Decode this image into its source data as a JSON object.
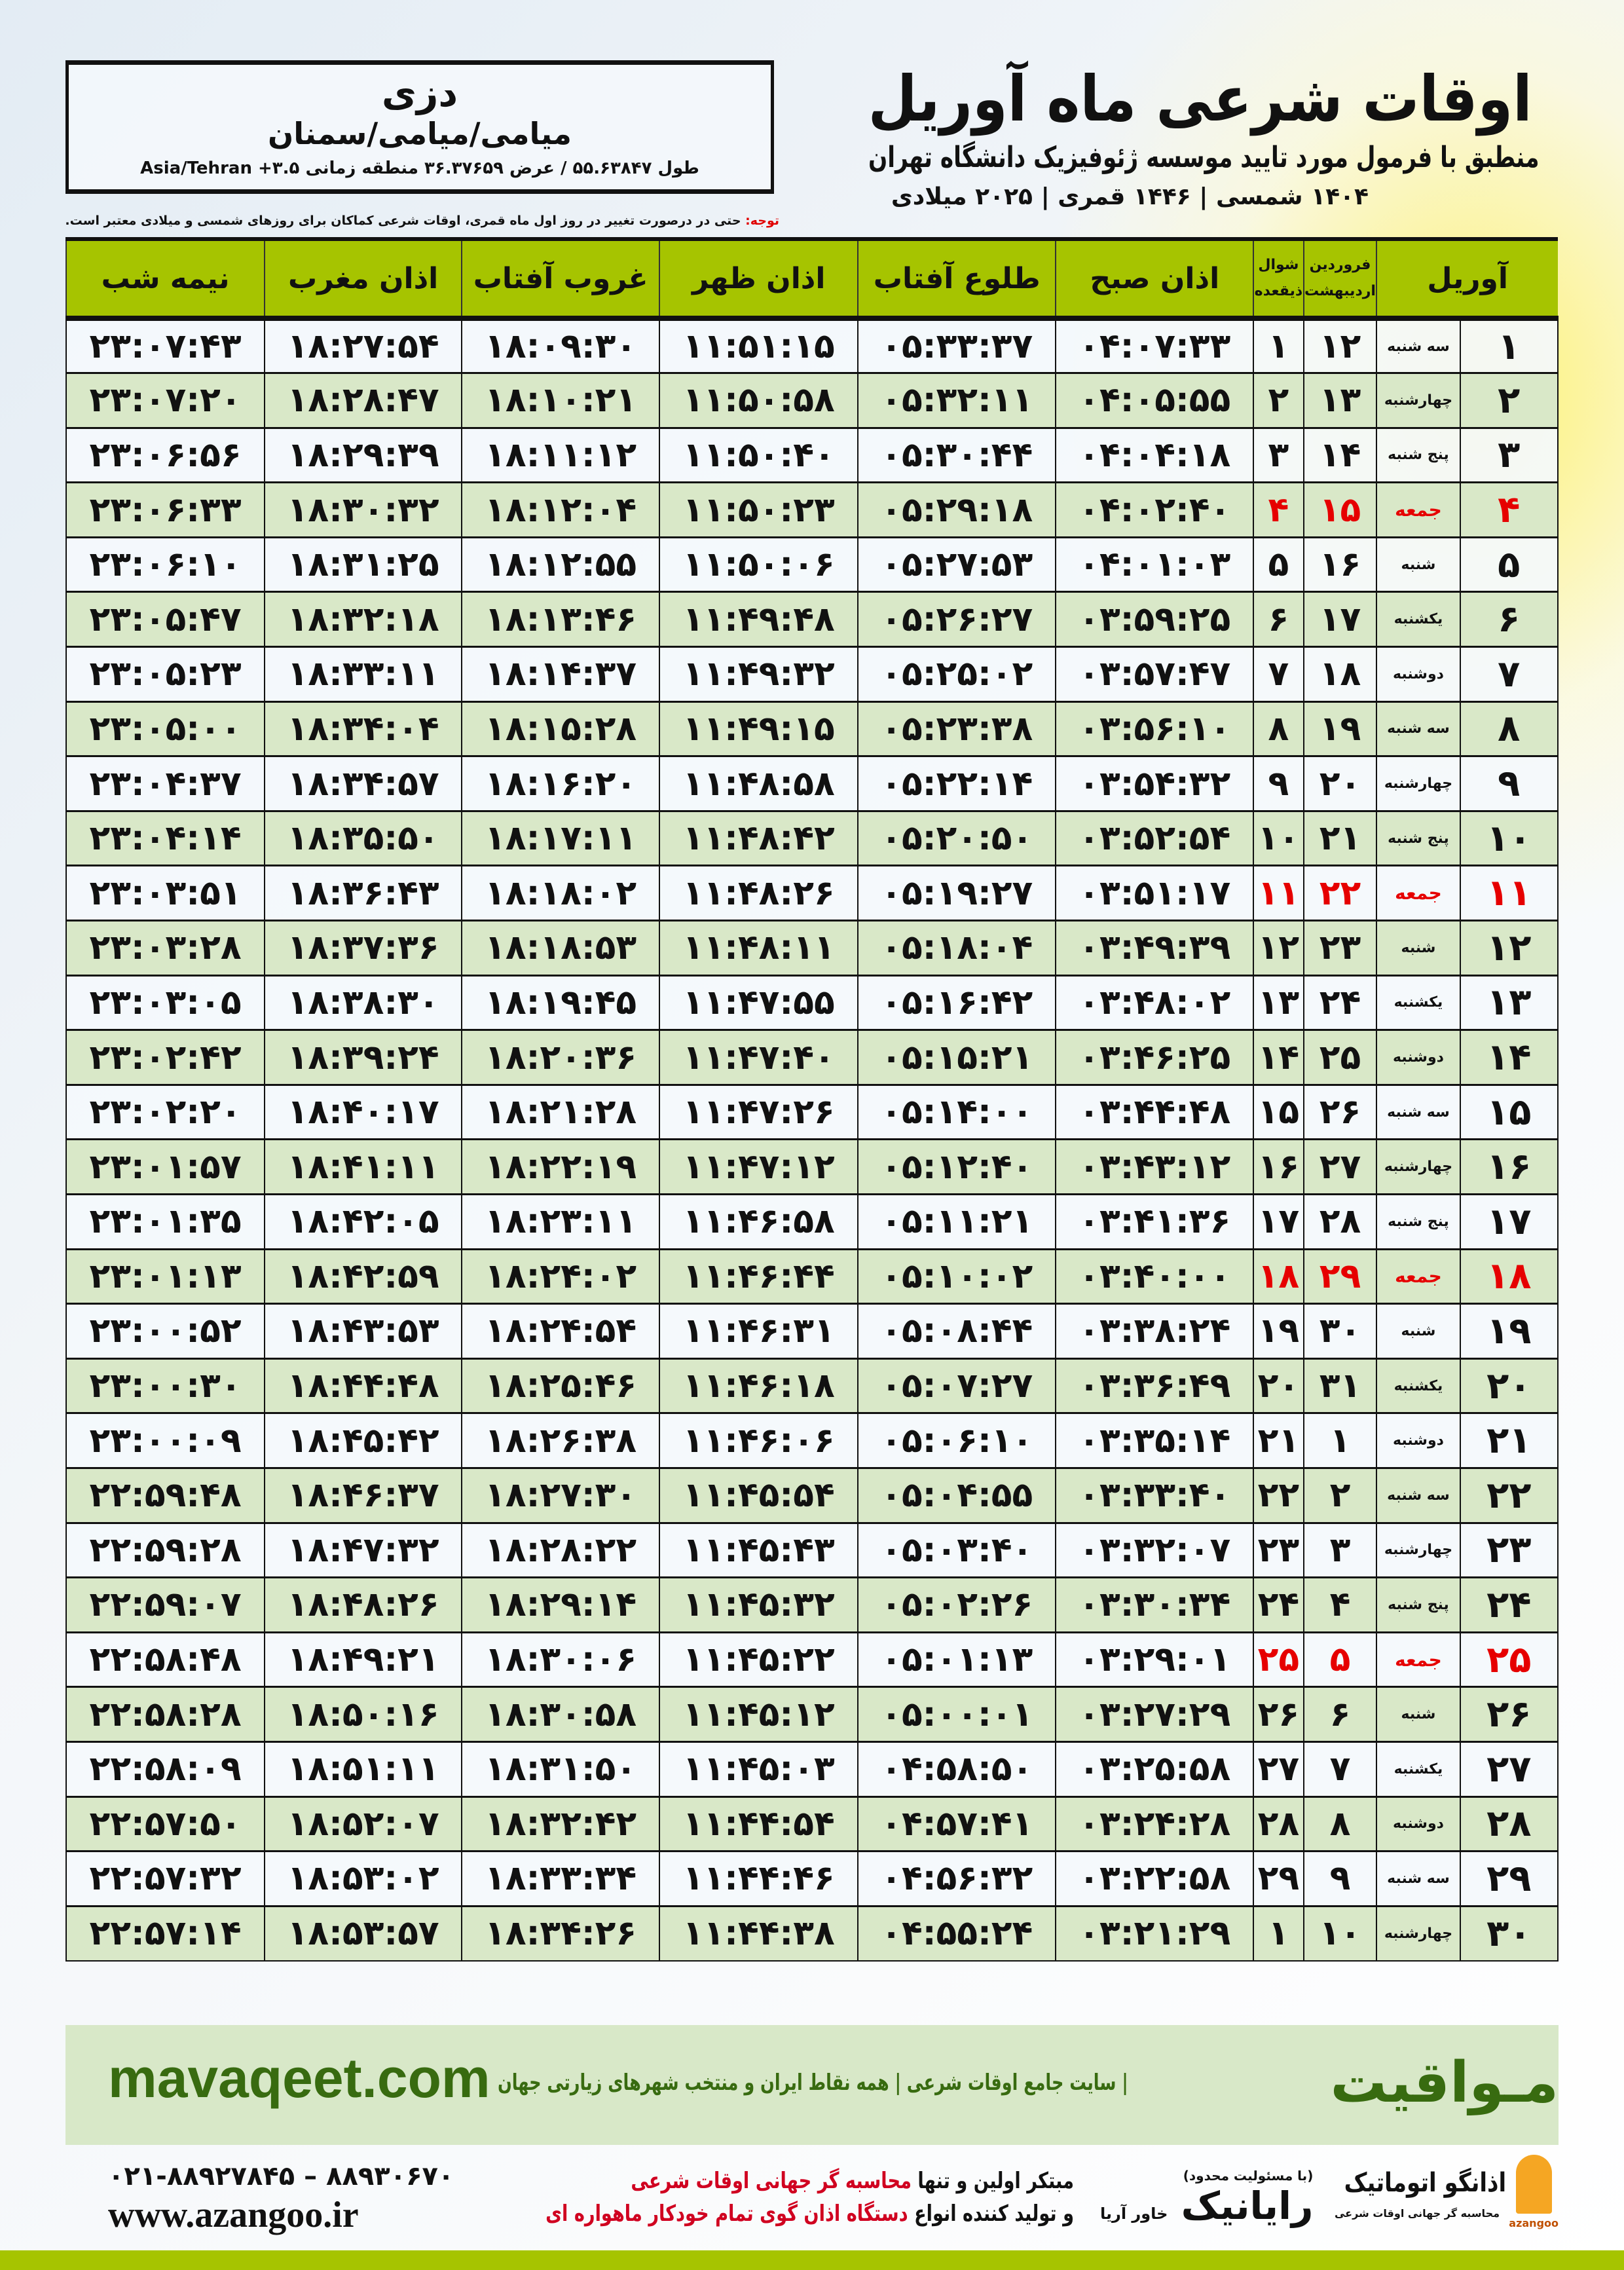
{
  "header": {
    "title": "اوقات شرعی ماه آوریل",
    "subtitle": "منطبق با فرمول مورد تایید موسسه ژئوفیزیک دانشگاه تهران",
    "dateline": "۱۴۰۴ شمسی | ۱۴۴۶ قمری | ۲۰۲۵ میلادی"
  },
  "location": {
    "city": "دزی",
    "region": "میامی/میامی/سمنان",
    "coords": "طول ۵۵.۶۳۸۴۷ / عرض ۳۶.۳۷۶۵۹ منطقه زمانی ۳.۵+ Asia/Tehran"
  },
  "note": {
    "label": "توجه:",
    "text": " حتی در درصورت تغییر در روز اول ماه قمری، اوقات شرعی کماکان برای روزهای شمسی و میلادی معتبر است."
  },
  "columns": {
    "month": "آوریل",
    "shamsi_top": "فروردین",
    "shamsi_bottom": "اردیبهشت",
    "qamari_top": "شوال",
    "qamari_bottom": "ذیقعده",
    "fajr": "اذان صبح",
    "sunrise": "طلوع آفتاب",
    "dhuhr": "اذان ظهر",
    "sunset": "غروب آفتاب",
    "maghrib": "اذان مغرب",
    "midnight": "نیمه شب"
  },
  "rows": [
    {
      "d": "۱",
      "w": "سه شنبه",
      "s": "۱۲",
      "q": "۱",
      "f": "۰۴:۰۷:۳۳",
      "r": "۰۵:۳۳:۳۷",
      "z": "۱۱:۵۱:۱۵",
      "g": "۱۸:۰۹:۳۰",
      "m": "۱۸:۲۷:۵۴",
      "n": "۲۳:۰۷:۴۳"
    },
    {
      "d": "۲",
      "w": "چهارشنبه",
      "s": "۱۳",
      "q": "۲",
      "f": "۰۴:۰۵:۵۵",
      "r": "۰۵:۳۲:۱۱",
      "z": "۱۱:۵۰:۵۸",
      "g": "۱۸:۱۰:۲۱",
      "m": "۱۸:۲۸:۴۷",
      "n": "۲۳:۰۷:۲۰"
    },
    {
      "d": "۳",
      "w": "پنج شنبه",
      "s": "۱۴",
      "q": "۳",
      "f": "۰۴:۰۴:۱۸",
      "r": "۰۵:۳۰:۴۴",
      "z": "۱۱:۵۰:۴۰",
      "g": "۱۸:۱۱:۱۲",
      "m": "۱۸:۲۹:۳۹",
      "n": "۲۳:۰۶:۵۶"
    },
    {
      "d": "۴",
      "w": "جمعه",
      "s": "۱۵",
      "q": "۴",
      "f": "۰۴:۰۲:۴۰",
      "r": "۰۵:۲۹:۱۸",
      "z": "۱۱:۵۰:۲۳",
      "g": "۱۸:۱۲:۰۴",
      "m": "۱۸:۳۰:۳۲",
      "n": "۲۳:۰۶:۳۳",
      "fri": true
    },
    {
      "d": "۵",
      "w": "شنبه",
      "s": "۱۶",
      "q": "۵",
      "f": "۰۴:۰۱:۰۳",
      "r": "۰۵:۲۷:۵۳",
      "z": "۱۱:۵۰:۰۶",
      "g": "۱۸:۱۲:۵۵",
      "m": "۱۸:۳۱:۲۵",
      "n": "۲۳:۰۶:۱۰"
    },
    {
      "d": "۶",
      "w": "یکشنبه",
      "s": "۱۷",
      "q": "۶",
      "f": "۰۳:۵۹:۲۵",
      "r": "۰۵:۲۶:۲۷",
      "z": "۱۱:۴۹:۴۸",
      "g": "۱۸:۱۳:۴۶",
      "m": "۱۸:۳۲:۱۸",
      "n": "۲۳:۰۵:۴۷"
    },
    {
      "d": "۷",
      "w": "دوشنبه",
      "s": "۱۸",
      "q": "۷",
      "f": "۰۳:۵۷:۴۷",
      "r": "۰۵:۲۵:۰۲",
      "z": "۱۱:۴۹:۳۲",
      "g": "۱۸:۱۴:۳۷",
      "m": "۱۸:۳۳:۱۱",
      "n": "۲۳:۰۵:۲۳"
    },
    {
      "d": "۸",
      "w": "سه شنبه",
      "s": "۱۹",
      "q": "۸",
      "f": "۰۳:۵۶:۱۰",
      "r": "۰۵:۲۳:۳۸",
      "z": "۱۱:۴۹:۱۵",
      "g": "۱۸:۱۵:۲۸",
      "m": "۱۸:۳۴:۰۴",
      "n": "۲۳:۰۵:۰۰"
    },
    {
      "d": "۹",
      "w": "چهارشنبه",
      "s": "۲۰",
      "q": "۹",
      "f": "۰۳:۵۴:۳۲",
      "r": "۰۵:۲۲:۱۴",
      "z": "۱۱:۴۸:۵۸",
      "g": "۱۸:۱۶:۲۰",
      "m": "۱۸:۳۴:۵۷",
      "n": "۲۳:۰۴:۳۷"
    },
    {
      "d": "۱۰",
      "w": "پنج شنبه",
      "s": "۲۱",
      "q": "۱۰",
      "f": "۰۳:۵۲:۵۴",
      "r": "۰۵:۲۰:۵۰",
      "z": "۱۱:۴۸:۴۲",
      "g": "۱۸:۱۷:۱۱",
      "m": "۱۸:۳۵:۵۰",
      "n": "۲۳:۰۴:۱۴"
    },
    {
      "d": "۱۱",
      "w": "جمعه",
      "s": "۲۲",
      "q": "۱۱",
      "f": "۰۳:۵۱:۱۷",
      "r": "۰۵:۱۹:۲۷",
      "z": "۱۱:۴۸:۲۶",
      "g": "۱۸:۱۸:۰۲",
      "m": "۱۸:۳۶:۴۳",
      "n": "۲۳:۰۳:۵۱",
      "fri": true
    },
    {
      "d": "۱۲",
      "w": "شنبه",
      "s": "۲۳",
      "q": "۱۲",
      "f": "۰۳:۴۹:۳۹",
      "r": "۰۵:۱۸:۰۴",
      "z": "۱۱:۴۸:۱۱",
      "g": "۱۸:۱۸:۵۳",
      "m": "۱۸:۳۷:۳۶",
      "n": "۲۳:۰۳:۲۸"
    },
    {
      "d": "۱۳",
      "w": "یکشنبه",
      "s": "۲۴",
      "q": "۱۳",
      "f": "۰۳:۴۸:۰۲",
      "r": "۰۵:۱۶:۴۲",
      "z": "۱۱:۴۷:۵۵",
      "g": "۱۸:۱۹:۴۵",
      "m": "۱۸:۳۸:۳۰",
      "n": "۲۳:۰۳:۰۵"
    },
    {
      "d": "۱۴",
      "w": "دوشنبه",
      "s": "۲۵",
      "q": "۱۴",
      "f": "۰۳:۴۶:۲۵",
      "r": "۰۵:۱۵:۲۱",
      "z": "۱۱:۴۷:۴۰",
      "g": "۱۸:۲۰:۳۶",
      "m": "۱۸:۳۹:۲۴",
      "n": "۲۳:۰۲:۴۲"
    },
    {
      "d": "۱۵",
      "w": "سه شنبه",
      "s": "۲۶",
      "q": "۱۵",
      "f": "۰۳:۴۴:۴۸",
      "r": "۰۵:۱۴:۰۰",
      "z": "۱۱:۴۷:۲۶",
      "g": "۱۸:۲۱:۲۸",
      "m": "۱۸:۴۰:۱۷",
      "n": "۲۳:۰۲:۲۰"
    },
    {
      "d": "۱۶",
      "w": "چهارشنبه",
      "s": "۲۷",
      "q": "۱۶",
      "f": "۰۳:۴۳:۱۲",
      "r": "۰۵:۱۲:۴۰",
      "z": "۱۱:۴۷:۱۲",
      "g": "۱۸:۲۲:۱۹",
      "m": "۱۸:۴۱:۱۱",
      "n": "۲۳:۰۱:۵۷"
    },
    {
      "d": "۱۷",
      "w": "پنج شنبه",
      "s": "۲۸",
      "q": "۱۷",
      "f": "۰۳:۴۱:۳۶",
      "r": "۰۵:۱۱:۲۱",
      "z": "۱۱:۴۶:۵۸",
      "g": "۱۸:۲۳:۱۱",
      "m": "۱۸:۴۲:۰۵",
      "n": "۲۳:۰۱:۳۵"
    },
    {
      "d": "۱۸",
      "w": "جمعه",
      "s": "۲۹",
      "q": "۱۸",
      "f": "۰۳:۴۰:۰۰",
      "r": "۰۵:۱۰:۰۲",
      "z": "۱۱:۴۶:۴۴",
      "g": "۱۸:۲۴:۰۲",
      "m": "۱۸:۴۲:۵۹",
      "n": "۲۳:۰۱:۱۳",
      "fri": true
    },
    {
      "d": "۱۹",
      "w": "شنبه",
      "s": "۳۰",
      "q": "۱۹",
      "f": "۰۳:۳۸:۲۴",
      "r": "۰۵:۰۸:۴۴",
      "z": "۱۱:۴۶:۳۱",
      "g": "۱۸:۲۴:۵۴",
      "m": "۱۸:۴۳:۵۳",
      "n": "۲۳:۰۰:۵۲"
    },
    {
      "d": "۲۰",
      "w": "یکشنبه",
      "s": "۳۱",
      "q": "۲۰",
      "f": "۰۳:۳۶:۴۹",
      "r": "۰۵:۰۷:۲۷",
      "z": "۱۱:۴۶:۱۸",
      "g": "۱۸:۲۵:۴۶",
      "m": "۱۸:۴۴:۴۸",
      "n": "۲۳:۰۰:۳۰"
    },
    {
      "d": "۲۱",
      "w": "دوشنبه",
      "s": "۱",
      "q": "۲۱",
      "f": "۰۳:۳۵:۱۴",
      "r": "۰۵:۰۶:۱۰",
      "z": "۱۱:۴۶:۰۶",
      "g": "۱۸:۲۶:۳۸",
      "m": "۱۸:۴۵:۴۲",
      "n": "۲۳:۰۰:۰۹"
    },
    {
      "d": "۲۲",
      "w": "سه شنبه",
      "s": "۲",
      "q": "۲۲",
      "f": "۰۳:۳۳:۴۰",
      "r": "۰۵:۰۴:۵۵",
      "z": "۱۱:۴۵:۵۴",
      "g": "۱۸:۲۷:۳۰",
      "m": "۱۸:۴۶:۳۷",
      "n": "۲۲:۵۹:۴۸"
    },
    {
      "d": "۲۳",
      "w": "چهارشنبه",
      "s": "۳",
      "q": "۲۳",
      "f": "۰۳:۳۲:۰۷",
      "r": "۰۵:۰۳:۴۰",
      "z": "۱۱:۴۵:۴۳",
      "g": "۱۸:۲۸:۲۲",
      "m": "۱۸:۴۷:۳۲",
      "n": "۲۲:۵۹:۲۸"
    },
    {
      "d": "۲۴",
      "w": "پنج شنبه",
      "s": "۴",
      "q": "۲۴",
      "f": "۰۳:۳۰:۳۴",
      "r": "۰۵:۰۲:۲۶",
      "z": "۱۱:۴۵:۳۲",
      "g": "۱۸:۲۹:۱۴",
      "m": "۱۸:۴۸:۲۶",
      "n": "۲۲:۵۹:۰۷"
    },
    {
      "d": "۲۵",
      "w": "جمعه",
      "s": "۵",
      "q": "۲۵",
      "f": "۰۳:۲۹:۰۱",
      "r": "۰۵:۰۱:۱۳",
      "z": "۱۱:۴۵:۲۲",
      "g": "۱۸:۳۰:۰۶",
      "m": "۱۸:۴۹:۲۱",
      "n": "۲۲:۵۸:۴۸",
      "fri": true
    },
    {
      "d": "۲۶",
      "w": "شنبه",
      "s": "۶",
      "q": "۲۶",
      "f": "۰۳:۲۷:۲۹",
      "r": "۰۵:۰۰:۰۱",
      "z": "۱۱:۴۵:۱۲",
      "g": "۱۸:۳۰:۵۸",
      "m": "۱۸:۵۰:۱۶",
      "n": "۲۲:۵۸:۲۸"
    },
    {
      "d": "۲۷",
      "w": "یکشنبه",
      "s": "۷",
      "q": "۲۷",
      "f": "۰۳:۲۵:۵۸",
      "r": "۰۴:۵۸:۵۰",
      "z": "۱۱:۴۵:۰۳",
      "g": "۱۸:۳۱:۵۰",
      "m": "۱۸:۵۱:۱۱",
      "n": "۲۲:۵۸:۰۹"
    },
    {
      "d": "۲۸",
      "w": "دوشنبه",
      "s": "۸",
      "q": "۲۸",
      "f": "۰۳:۲۴:۲۸",
      "r": "۰۴:۵۷:۴۱",
      "z": "۱۱:۴۴:۵۴",
      "g": "۱۸:۳۲:۴۲",
      "m": "۱۸:۵۲:۰۷",
      "n": "۲۲:۵۷:۵۰"
    },
    {
      "d": "۲۹",
      "w": "سه شنبه",
      "s": "۹",
      "q": "۲۹",
      "f": "۰۳:۲۲:۵۸",
      "r": "۰۴:۵۶:۳۲",
      "z": "۱۱:۴۴:۴۶",
      "g": "۱۸:۳۳:۳۴",
      "m": "۱۸:۵۳:۰۲",
      "n": "۲۲:۵۷:۳۲"
    },
    {
      "d": "۳۰",
      "w": "چهارشنبه",
      "s": "۱۰",
      "q": "۱",
      "f": "۰۳:۲۱:۲۹",
      "r": "۰۴:۵۵:۲۴",
      "z": "۱۱:۴۴:۳۸",
      "g": "۱۸:۳۴:۲۶",
      "m": "۱۸:۵۳:۵۷",
      "n": "۲۲:۵۷:۱۴"
    }
  ],
  "footer": {
    "site_name": "مـواقیت",
    "site_tag": "| سایت جامع اوقات شرعی | همه نقاط ایران و منتخب شهرهای زیارتی جهان",
    "site_url": "mavaqeet.com",
    "promo_1a": "مبتکر اولین و تنها ",
    "promo_1b": "محاسبه گر جهانی اوقات شرعی",
    "promo_2a": "و تولید کننده انواع ",
    "promo_2b": "دستگاه اذان گوی تمام خودکار ماهواره ای",
    "phones": "۰۲۱-۸۸۹۲۷۸۴۵ – ۸۸۹۳۰۶۷۰",
    "az_url": "www.azangoo.ir",
    "raya_small": "(با مسئولیت محدود)",
    "raya_name": "رایانیک",
    "raya_sub": "خاور آریا",
    "az_name": "اذانگو اتوماتیک",
    "az_tag": "محاسبه گر جهانی اوقات شرعی",
    "az_en": "azangoo"
  },
  "colors": {
    "header_green": "#a6c400",
    "row_green": "#d9e8c8",
    "friday_red": "#e60000",
    "brand_green": "#386b10"
  }
}
